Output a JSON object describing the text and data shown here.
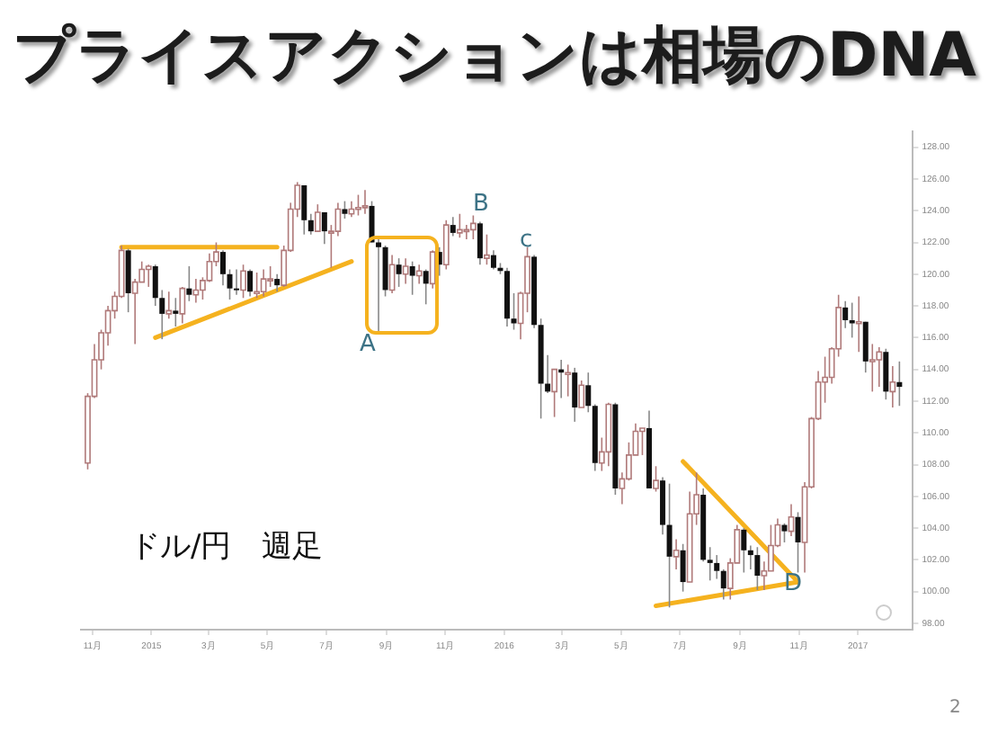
{
  "chart_data": {
    "type": "candlestick",
    "title": "プライスアクションは相場のDNA",
    "annotations": [
      "ドル/円　週足",
      "2",
      "A",
      "B",
      "c",
      "D"
    ],
    "x": [
      "2014-10-27",
      "2014-11-03",
      "2014-11-10",
      "2014-11-17",
      "2014-11-24",
      "2014-12-01",
      "2014-12-08",
      "2014-12-15",
      "2014-12-22",
      "2014-12-29",
      "2015-01-05",
      "2015-01-12",
      "2015-01-19",
      "2015-01-26",
      "2015-02-02",
      "2015-02-09",
      "2015-02-16",
      "2015-02-23",
      "2015-03-02",
      "2015-03-09",
      "2015-03-16",
      "2015-03-23",
      "2015-03-30",
      "2015-04-06",
      "2015-04-13",
      "2015-04-20",
      "2015-04-27",
      "2015-05-04",
      "2015-05-11",
      "2015-05-18",
      "2015-05-25",
      "2015-06-01",
      "2015-06-08",
      "2015-06-15",
      "2015-06-22",
      "2015-06-29",
      "2015-07-06",
      "2015-07-13",
      "2015-07-20",
      "2015-07-27",
      "2015-08-03",
      "2015-08-10",
      "2015-08-17",
      "2015-08-24",
      "2015-08-31",
      "2015-09-07",
      "2015-09-14",
      "2015-09-21",
      "2015-09-28",
      "2015-10-05",
      "2015-10-12",
      "2015-10-19",
      "2015-10-26",
      "2015-11-02",
      "2015-11-09",
      "2015-11-16",
      "2015-11-23",
      "2015-11-30",
      "2015-12-07",
      "2015-12-14",
      "2015-12-21",
      "2015-12-28",
      "2016-01-04",
      "2016-01-11",
      "2016-01-18",
      "2016-01-25",
      "2016-02-01",
      "2016-02-08",
      "2016-02-15",
      "2016-02-22",
      "2016-02-29",
      "2016-03-07",
      "2016-03-14",
      "2016-03-21",
      "2016-03-28",
      "2016-04-04",
      "2016-04-11",
      "2016-04-18",
      "2016-04-25",
      "2016-05-02",
      "2016-05-09",
      "2016-05-16",
      "2016-05-23",
      "2016-05-30",
      "2016-06-06",
      "2016-06-13",
      "2016-06-20",
      "2016-06-27",
      "2016-07-04",
      "2016-07-11",
      "2016-07-18",
      "2016-07-25",
      "2016-08-01",
      "2016-08-08",
      "2016-08-15",
      "2016-08-22",
      "2016-08-29",
      "2016-09-05",
      "2016-09-12",
      "2016-09-19",
      "2016-09-26",
      "2016-10-03",
      "2016-10-10",
      "2016-10-17",
      "2016-10-24",
      "2016-10-31",
      "2016-11-07",
      "2016-11-14",
      "2016-11-21",
      "2016-11-28",
      "2016-12-05",
      "2016-12-12",
      "2016-12-19",
      "2016-12-26",
      "2017-01-02",
      "2017-01-09",
      "2017-01-16",
      "2017-01-23",
      "2017-01-30",
      "2017-02-06",
      "2017-02-13"
    ],
    "ohlc": [
      [
        108.1,
        112.5,
        107.7,
        112.3
      ],
      [
        112.3,
        115.6,
        112.2,
        114.6
      ],
      [
        114.6,
        116.5,
        114.0,
        116.3
      ],
      [
        116.3,
        118.0,
        115.5,
        117.7
      ],
      [
        117.7,
        118.9,
        117.2,
        118.6
      ],
      [
        118.6,
        121.8,
        118.5,
        121.5
      ],
      [
        121.5,
        121.6,
        117.6,
        118.8
      ],
      [
        118.8,
        119.7,
        115.6,
        119.5
      ],
      [
        119.5,
        120.8,
        119.5,
        120.3
      ],
      [
        120.3,
        120.6,
        119.2,
        120.5
      ],
      [
        120.5,
        120.6,
        118.0,
        118.5
      ],
      [
        118.5,
        119.0,
        115.9,
        117.5
      ],
      [
        117.5,
        118.9,
        117.2,
        117.7
      ],
      [
        117.7,
        118.5,
        116.7,
        117.5
      ],
      [
        117.5,
        119.2,
        116.9,
        119.1
      ],
      [
        119.1,
        120.5,
        118.3,
        118.7
      ],
      [
        118.7,
        119.7,
        118.2,
        119.0
      ],
      [
        119.0,
        119.8,
        118.4,
        119.6
      ],
      [
        119.6,
        121.3,
        119.5,
        120.8
      ],
      [
        120.8,
        122.0,
        120.5,
        121.4
      ],
      [
        121.4,
        121.5,
        119.3,
        120.0
      ],
      [
        120.0,
        120.3,
        118.4,
        119.1
      ],
      [
        119.1,
        120.3,
        118.7,
        119.0
      ],
      [
        119.0,
        120.6,
        118.5,
        120.2
      ],
      [
        120.2,
        120.3,
        118.6,
        118.9
      ],
      [
        118.9,
        120.1,
        118.5,
        118.9
      ],
      [
        118.9,
        120.3,
        118.6,
        119.7
      ],
      [
        119.7,
        120.5,
        119.2,
        119.7
      ],
      [
        119.7,
        120.0,
        118.9,
        119.3
      ],
      [
        119.3,
        121.8,
        119.2,
        121.5
      ],
      [
        121.5,
        124.5,
        121.4,
        124.1
      ],
      [
        124.1,
        125.8,
        123.6,
        125.6
      ],
      [
        125.6,
        125.6,
        122.5,
        123.4
      ],
      [
        123.4,
        123.8,
        122.5,
        122.7
      ],
      [
        122.7,
        124.4,
        122.7,
        123.9
      ],
      [
        123.9,
        123.9,
        121.9,
        122.7
      ],
      [
        122.7,
        123.1,
        120.4,
        122.7
      ],
      [
        122.7,
        124.5,
        122.4,
        124.1
      ],
      [
        124.1,
        124.6,
        123.5,
        123.8
      ],
      [
        123.8,
        124.6,
        123.6,
        124.1
      ],
      [
        124.1,
        125.0,
        123.7,
        124.2
      ],
      [
        124.2,
        125.3,
        123.8,
        124.3
      ],
      [
        124.3,
        124.6,
        122.0,
        122.0
      ],
      [
        122.0,
        122.2,
        116.2,
        121.7
      ],
      [
        121.7,
        121.8,
        118.6,
        119.0
      ],
      [
        119.0,
        121.2,
        118.8,
        120.6
      ],
      [
        120.6,
        121.0,
        119.2,
        120.0
      ],
      [
        120.0,
        121.0,
        119.4,
        120.5
      ],
      [
        120.5,
        120.8,
        118.7,
        119.9
      ],
      [
        119.9,
        120.6,
        119.4,
        120.2
      ],
      [
        120.2,
        120.3,
        118.1,
        119.4
      ],
      [
        119.4,
        121.5,
        119.1,
        121.4
      ],
      [
        121.4,
        121.7,
        119.9,
        120.6
      ],
      [
        120.6,
        123.4,
        120.3,
        123.1
      ],
      [
        123.1,
        123.6,
        122.4,
        122.6
      ],
      [
        122.6,
        123.8,
        122.3,
        122.8
      ],
      [
        122.8,
        123.1,
        122.2,
        122.8
      ],
      [
        122.8,
        123.7,
        122.2,
        123.2
      ],
      [
        123.2,
        123.3,
        120.6,
        121.0
      ],
      [
        121.0,
        122.5,
        120.6,
        121.2
      ],
      [
        121.2,
        121.5,
        120.3,
        120.4
      ],
      [
        120.4,
        120.7,
        120.0,
        120.2
      ],
      [
        120.2,
        120.4,
        116.7,
        117.2
      ],
      [
        117.2,
        118.8,
        116.5,
        116.9
      ],
      [
        116.9,
        118.9,
        115.9,
        118.8
      ],
      [
        118.8,
        121.7,
        117.6,
        121.1
      ],
      [
        121.1,
        121.2,
        116.6,
        116.8
      ],
      [
        116.8,
        117.2,
        110.9,
        113.1
      ],
      [
        113.1,
        114.9,
        112.5,
        112.6
      ],
      [
        112.6,
        114.0,
        111.0,
        114.0
      ],
      [
        114.0,
        114.6,
        112.2,
        113.8
      ],
      [
        113.8,
        114.3,
        112.3,
        113.8
      ],
      [
        113.8,
        114.1,
        110.7,
        111.6
      ],
      [
        111.6,
        113.3,
        111.6,
        113.0
      ],
      [
        113.0,
        113.8,
        111.3,
        111.7
      ],
      [
        111.7,
        111.8,
        107.6,
        108.1
      ],
      [
        108.1,
        109.7,
        107.6,
        108.8
      ],
      [
        108.8,
        111.9,
        107.9,
        111.8
      ],
      [
        111.8,
        111.9,
        106.1,
        106.5
      ],
      [
        106.5,
        107.5,
        105.5,
        107.1
      ],
      [
        107.1,
        109.4,
        107.0,
        108.6
      ],
      [
        108.6,
        110.6,
        108.6,
        110.1
      ],
      [
        110.1,
        110.3,
        108.6,
        110.3
      ],
      [
        110.3,
        111.4,
        106.5,
        106.5
      ],
      [
        106.5,
        107.9,
        106.3,
        107.0
      ],
      [
        107.0,
        107.2,
        103.6,
        104.2
      ],
      [
        104.2,
        106.8,
        99.0,
        102.2
      ],
      [
        102.2,
        103.3,
        101.4,
        102.6
      ],
      [
        102.6,
        103.0,
        100.0,
        100.6
      ],
      [
        100.6,
        106.3,
        100.6,
        104.9
      ],
      [
        104.9,
        107.5,
        104.2,
        106.1
      ],
      [
        106.1,
        106.5,
        101.9,
        102.0
      ],
      [
        102.0,
        102.8,
        100.7,
        101.8
      ],
      [
        101.8,
        102.3,
        100.8,
        101.3
      ],
      [
        101.3,
        101.4,
        99.5,
        100.2
      ],
      [
        100.2,
        102.1,
        99.5,
        101.8
      ],
      [
        101.8,
        104.2,
        101.8,
        103.9
      ],
      [
        103.9,
        104.0,
        101.2,
        102.6
      ],
      [
        102.6,
        102.9,
        101.4,
        102.3
      ],
      [
        102.3,
        102.8,
        100.1,
        101.0
      ],
      [
        101.0,
        101.9,
        100.1,
        101.3
      ],
      [
        101.3,
        104.2,
        101.3,
        102.9
      ],
      [
        102.9,
        104.6,
        102.8,
        104.2
      ],
      [
        104.2,
        104.3,
        103.1,
        103.8
      ],
      [
        103.8,
        105.5,
        103.5,
        104.7
      ],
      [
        104.7,
        105.0,
        101.2,
        103.1
      ],
      [
        103.1,
        106.9,
        101.2,
        106.6
      ],
      [
        106.6,
        111.0,
        106.5,
        110.9
      ],
      [
        110.9,
        113.9,
        110.8,
        113.2
      ],
      [
        113.2,
        114.8,
        111.9,
        113.5
      ],
      [
        113.5,
        115.4,
        113.1,
        115.3
      ],
      [
        115.3,
        118.7,
        114.8,
        117.9
      ],
      [
        117.9,
        118.3,
        116.6,
        117.1
      ],
      [
        117.1,
        118.2,
        116.0,
        116.9
      ],
      [
        116.9,
        118.6,
        115.1,
        117.0
      ],
      [
        117.0,
        117.0,
        113.8,
        114.5
      ],
      [
        114.5,
        115.6,
        112.6,
        114.6
      ],
      [
        114.6,
        115.4,
        112.9,
        115.1
      ],
      [
        115.1,
        115.3,
        112.1,
        112.6
      ],
      [
        112.6,
        114.2,
        111.6,
        113.2
      ],
      [
        113.2,
        114.5,
        111.7,
        112.9
      ]
    ],
    "series": [
      {
        "type": "line",
        "color": "#f5b21f",
        "x": [
          "2014-12-01",
          "2015-05-11"
        ],
        "values": [
          121.7,
          121.7
        ]
      },
      {
        "type": "line",
        "color": "#f5b21f",
        "x": [
          "2015-01-05",
          "2015-07-27"
        ],
        "values": [
          116.0,
          120.8
        ]
      },
      {
        "type": "line",
        "color": "#f5b21f",
        "x": [
          "2016-07-04",
          "2016-10-31"
        ],
        "values": [
          108.2,
          100.6
        ]
      },
      {
        "type": "line",
        "color": "#f5b21f",
        "x": [
          "2016-06-06",
          "2016-10-31"
        ],
        "values": [
          99.1,
          100.6
        ]
      }
    ],
    "xlim": [
      "2014-10-20",
      "2017-02-27"
    ],
    "xticks": [
      {
        "value": "2014-11-01",
        "label": "11月"
      },
      {
        "value": "2015-01-01",
        "label": "2015"
      },
      {
        "value": "2015-03-01",
        "label": "3月"
      },
      {
        "value": "2015-05-01",
        "label": "5月"
      },
      {
        "value": "2015-07-01",
        "label": "7月"
      },
      {
        "value": "2015-09-01",
        "label": "9月"
      },
      {
        "value": "2015-11-01",
        "label": "11月"
      },
      {
        "value": "2016-01-01",
        "label": "2016"
      },
      {
        "value": "2016-03-01",
        "label": "3月"
      },
      {
        "value": "2016-05-01",
        "label": "5月"
      },
      {
        "value": "2016-07-01",
        "label": "7月"
      },
      {
        "value": "2016-09-01",
        "label": "9月"
      },
      {
        "value": "2016-11-01",
        "label": "11月"
      },
      {
        "value": "2017-01-01",
        "label": "2017"
      }
    ],
    "ylim": [
      97.6,
      129
    ],
    "yticks": [
      {
        "value": 98,
        "label": "98.00"
      },
      {
        "value": 100,
        "label": "100.00"
      },
      {
        "value": 102,
        "label": "102.00"
      },
      {
        "value": 104,
        "label": "104.00"
      },
      {
        "value": 106,
        "label": "106.00"
      },
      {
        "value": 108,
        "label": "108.00"
      },
      {
        "value": 110,
        "label": "110.00"
      },
      {
        "value": 112,
        "label": "112.00"
      },
      {
        "value": 114,
        "label": "114.00"
      },
      {
        "value": 116,
        "label": "116.00"
      },
      {
        "value": 118,
        "label": "118.00"
      },
      {
        "value": 120,
        "label": "120.00"
      },
      {
        "value": 122,
        "label": "122.00"
      },
      {
        "value": 124,
        "label": "124.00"
      },
      {
        "value": 126,
        "label": "126.00"
      },
      {
        "value": 128,
        "label": "128.00"
      }
    ]
  }
}
